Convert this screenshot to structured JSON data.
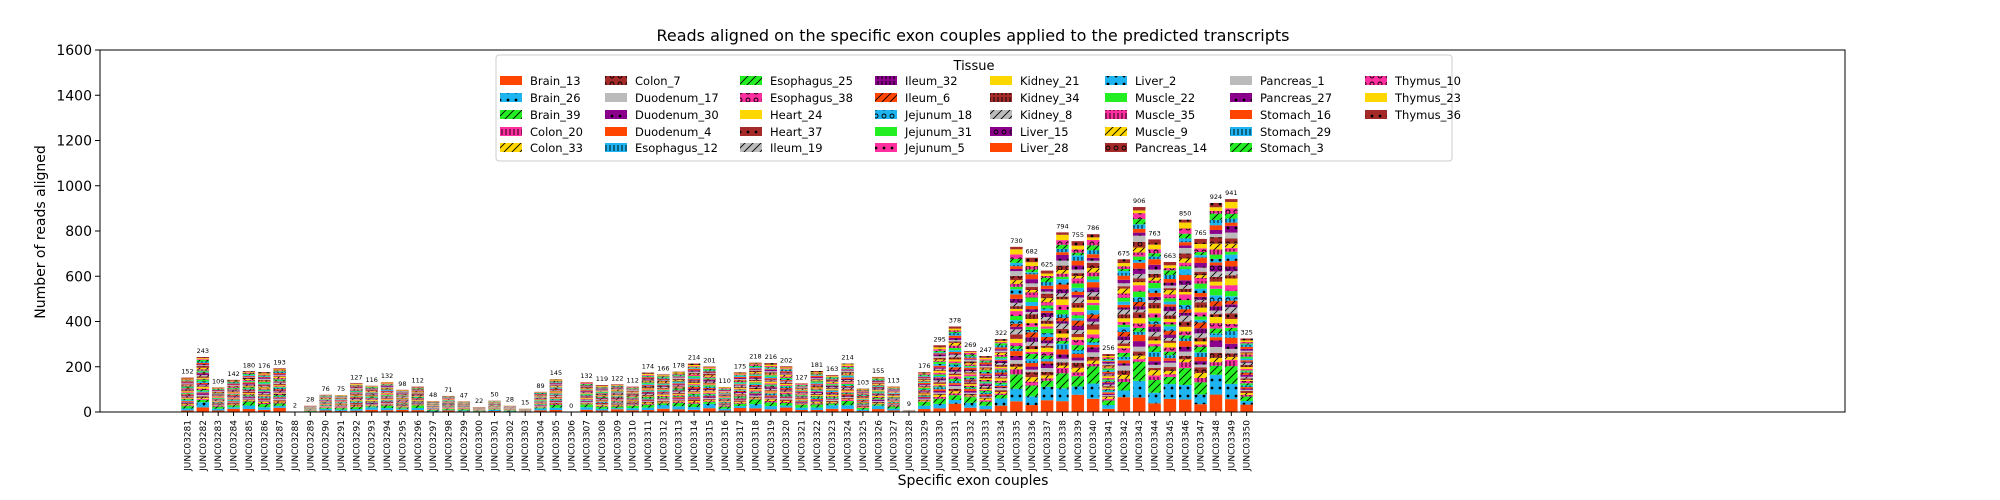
{
  "chart_data": {
    "type": "bar",
    "stacked": true,
    "title": "Reads aligned on the specific exon couples applied to the predicted transcripts",
    "xlabel": "Specific exon couples",
    "ylabel": "Number of reads aligned",
    "ylim": [
      0,
      1600
    ],
    "yticks": [
      "0",
      "200",
      "400",
      "600",
      "800",
      "1000",
      "1200",
      "1400",
      "1600"
    ],
    "grid": false,
    "legend_title": "Tissue",
    "legend_position": "top-center",
    "categories": [
      "JUNC03281",
      "JUNC03282",
      "JUNC03283",
      "JUNC03284",
      "JUNC03285",
      "JUNC03286",
      "JUNC03287",
      "JUNC03288",
      "JUNC03289",
      "JUNC03290",
      "JUNC03291",
      "JUNC03292",
      "JUNC03293",
      "JUNC03294",
      "JUNC03295",
      "JUNC03296",
      "JUNC03297",
      "JUNC03298",
      "JUNC03299",
      "JUNC03300",
      "JUNC03301",
      "JUNC03302",
      "JUNC03303",
      "JUNC03304",
      "JUNC03305",
      "JUNC03306",
      "JUNC03307",
      "JUNC03308",
      "JUNC03309",
      "JUNC03310",
      "JUNC03311",
      "JUNC03312",
      "JUNC03313",
      "JUNC03314",
      "JUNC03315",
      "JUNC03316",
      "JUNC03317",
      "JUNC03318",
      "JUNC03319",
      "JUNC03320",
      "JUNC03321",
      "JUNC03322",
      "JUNC03323",
      "JUNC03324",
      "JUNC03325",
      "JUNC03326",
      "JUNC03327",
      "JUNC03328",
      "JUNC03329",
      "JUNC03330",
      "JUNC03331",
      "JUNC03332",
      "JUNC03333",
      "JUNC03334",
      "JUNC03335",
      "JUNC03336",
      "JUNC03337",
      "JUNC03338",
      "JUNC03339",
      "JUNC03340",
      "JUNC03341",
      "JUNC03342",
      "JUNC03343",
      "JUNC03344",
      "JUNC03345",
      "JUNC03346",
      "JUNC03347",
      "JUNC03348",
      "JUNC03349",
      "JUNC03350"
    ],
    "totals": [
      152,
      243,
      109,
      142,
      180,
      176,
      193,
      2,
      28,
      76,
      75,
      127,
      116,
      132,
      98,
      112,
      48,
      71,
      47,
      22,
      50,
      28,
      15,
      89,
      145,
      0,
      132,
      119,
      122,
      112,
      174,
      166,
      178,
      214,
      201,
      110,
      175,
      218,
      216,
      202,
      127,
      181,
      163,
      214,
      103,
      155,
      113,
      9,
      176,
      295,
      378,
      269,
      247,
      322,
      730,
      682,
      625,
      794,
      755,
      786,
      256,
      675,
      906,
      763,
      663,
      850,
      765,
      924,
      941,
      325
    ],
    "series": [
      {
        "name": "Brain_13",
        "color": "#ff4500",
        "hatch": "none"
      },
      {
        "name": "Brain_26",
        "color": "#1eb4f0",
        "hatch": "dot"
      },
      {
        "name": "Brain_39",
        "color": "#22ee22",
        "hatch": "slash"
      },
      {
        "name": "Colon_20",
        "color": "#ff2fa0",
        "hatch": "bracket"
      },
      {
        "name": "Colon_33",
        "color": "#ffd700",
        "hatch": "slash"
      },
      {
        "name": "Colon_7",
        "color": "#a52a2a",
        "hatch": "ring"
      },
      {
        "name": "Duodenum_17",
        "color": "#bbbbbb",
        "hatch": "none"
      },
      {
        "name": "Duodenum_30",
        "color": "#8b008b",
        "hatch": "dot"
      },
      {
        "name": "Duodenum_4",
        "color": "#ff4500",
        "hatch": "none"
      },
      {
        "name": "Esophagus_12",
        "color": "#1eb4f0",
        "hatch": "bracket"
      },
      {
        "name": "Esophagus_25",
        "color": "#22ee22",
        "hatch": "slash"
      },
      {
        "name": "Esophagus_38",
        "color": "#ff2fa0",
        "hatch": "ring"
      },
      {
        "name": "Heart_24",
        "color": "#ffd700",
        "hatch": "none"
      },
      {
        "name": "Heart_37",
        "color": "#a52a2a",
        "hatch": "dot"
      },
      {
        "name": "Ileum_19",
        "color": "#bbbbbb",
        "hatch": "slash"
      },
      {
        "name": "Ileum_32",
        "color": "#8b008b",
        "hatch": "bracket"
      },
      {
        "name": "Ileum_6",
        "color": "#ff4500",
        "hatch": "slash"
      },
      {
        "name": "Jejunum_18",
        "color": "#1eb4f0",
        "hatch": "ring"
      },
      {
        "name": "Jejunum_31",
        "color": "#22ee22",
        "hatch": "none"
      },
      {
        "name": "Jejunum_5",
        "color": "#ff2fa0",
        "hatch": "dot"
      },
      {
        "name": "Kidney_21",
        "color": "#ffd700",
        "hatch": "none"
      },
      {
        "name": "Kidney_34",
        "color": "#a52a2a",
        "hatch": "bracket"
      },
      {
        "name": "Kidney_8",
        "color": "#bbbbbb",
        "hatch": "slash"
      },
      {
        "name": "Liver_15",
        "color": "#8b008b",
        "hatch": "ring"
      },
      {
        "name": "Liver_28",
        "color": "#ff4500",
        "hatch": "none"
      },
      {
        "name": "Liver_2",
        "color": "#1eb4f0",
        "hatch": "dot"
      },
      {
        "name": "Muscle_22",
        "color": "#22ee22",
        "hatch": "none"
      },
      {
        "name": "Muscle_35",
        "color": "#ff2fa0",
        "hatch": "bracket"
      },
      {
        "name": "Muscle_9",
        "color": "#ffd700",
        "hatch": "slash"
      },
      {
        "name": "Pancreas_14",
        "color": "#a52a2a",
        "hatch": "ring"
      },
      {
        "name": "Pancreas_1",
        "color": "#bbbbbb",
        "hatch": "none"
      },
      {
        "name": "Pancreas_27",
        "color": "#8b008b",
        "hatch": "dot"
      },
      {
        "name": "Stomach_16",
        "color": "#ff4500",
        "hatch": "none"
      },
      {
        "name": "Stomach_29",
        "color": "#1eb4f0",
        "hatch": "bracket"
      },
      {
        "name": "Stomach_3",
        "color": "#22ee22",
        "hatch": "slash"
      },
      {
        "name": "Thymus_10",
        "color": "#ff2fa0",
        "hatch": "ring"
      },
      {
        "name": "Thymus_23",
        "color": "#ffd700",
        "hatch": "none"
      },
      {
        "name": "Thymus_36",
        "color": "#a52a2a",
        "hatch": "dot"
      }
    ]
  }
}
